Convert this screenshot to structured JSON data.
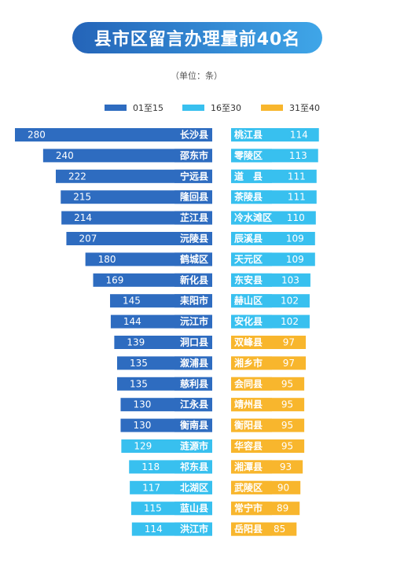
{
  "title": "县市区留言办理量前40名",
  "unit_label": "（单位：条）",
  "colors": {
    "rank_1_15": "#2e6cc0",
    "rank_16_30": "#38c0ef",
    "rank_31_40": "#f8b62d",
    "title_start": "#2464b8",
    "title_end": "#3fa6e8"
  },
  "legend": [
    {
      "label": "01至15",
      "color": "#2e6cc0"
    },
    {
      "label": "16至30",
      "color": "#38c0ef"
    },
    {
      "label": "31至40",
      "color": "#f8b62d"
    }
  ],
  "chart_data": {
    "type": "bar",
    "orientation": "horizontal",
    "title": "县市区留言办理量前40名",
    "unit": "条",
    "groups": [
      "01至15",
      "16至30",
      "31至40"
    ],
    "left_column": [
      {
        "name": "长沙县",
        "value": 280,
        "group": "01至15"
      },
      {
        "name": "邵东市",
        "value": 240,
        "group": "01至15"
      },
      {
        "name": "宁远县",
        "value": 222,
        "group": "01至15"
      },
      {
        "name": "隆回县",
        "value": 215,
        "group": "01至15"
      },
      {
        "name": "芷江县",
        "value": 214,
        "group": "01至15"
      },
      {
        "name": "沅陵县",
        "value": 207,
        "group": "01至15"
      },
      {
        "name": "鹤城区",
        "value": 180,
        "group": "01至15"
      },
      {
        "name": "新化县",
        "value": 169,
        "group": "01至15"
      },
      {
        "name": "耒阳市",
        "value": 145,
        "group": "01至15"
      },
      {
        "name": "沅江市",
        "value": 144,
        "group": "01至15"
      },
      {
        "name": "洞口县",
        "value": 139,
        "group": "01至15"
      },
      {
        "name": "溆浦县",
        "value": 135,
        "group": "01至15"
      },
      {
        "name": "慈利县",
        "value": 135,
        "group": "01至15"
      },
      {
        "name": "江永县",
        "value": 130,
        "group": "01至15"
      },
      {
        "name": "衡南县",
        "value": 130,
        "group": "01至15"
      },
      {
        "name": "涟源市",
        "value": 129,
        "group": "16至30"
      },
      {
        "name": "祁东县",
        "value": 118,
        "group": "16至30"
      },
      {
        "name": "北湖区",
        "value": 117,
        "group": "16至30"
      },
      {
        "name": "蓝山县",
        "value": 115,
        "group": "16至30"
      },
      {
        "name": "洪江市",
        "value": 114,
        "group": "16至30"
      }
    ],
    "right_column": [
      {
        "name": "桃江县",
        "value": 114,
        "group": "16至30"
      },
      {
        "name": "零陵区",
        "value": 113,
        "group": "16至30"
      },
      {
        "name": "道　县",
        "value": 111,
        "group": "16至30"
      },
      {
        "name": "茶陵县",
        "value": 111,
        "group": "16至30"
      },
      {
        "name": "冷水滩区",
        "value": 110,
        "group": "16至30"
      },
      {
        "name": "辰溪县",
        "value": 109,
        "group": "16至30"
      },
      {
        "name": "天元区",
        "value": 109,
        "group": "16至30"
      },
      {
        "name": "东安县",
        "value": 103,
        "group": "16至30"
      },
      {
        "name": "赫山区",
        "value": 102,
        "group": "16至30"
      },
      {
        "name": "安化县",
        "value": 102,
        "group": "16至30"
      },
      {
        "name": "双峰县",
        "value": 97,
        "group": "31至40"
      },
      {
        "name": "湘乡市",
        "value": 97,
        "group": "31至40"
      },
      {
        "name": "会同县",
        "value": 95,
        "group": "31至40"
      },
      {
        "name": "靖州县",
        "value": 95,
        "group": "31至40"
      },
      {
        "name": "衡阳县",
        "value": 95,
        "group": "31至40"
      },
      {
        "name": "华容县",
        "value": 95,
        "group": "31至40"
      },
      {
        "name": "湘潭县",
        "value": 93,
        "group": "31至40"
      },
      {
        "name": "武陵区",
        "value": 90,
        "group": "31至40"
      },
      {
        "name": "常宁市",
        "value": 89,
        "group": "31至40"
      },
      {
        "name": "岳阳县",
        "value": 85,
        "group": "31至40"
      }
    ]
  }
}
